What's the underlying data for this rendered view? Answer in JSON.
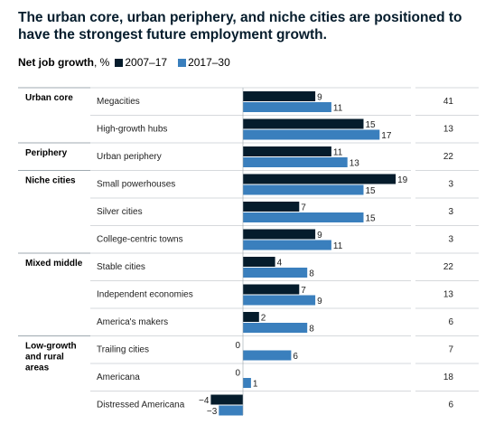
{
  "title": "The urban core, urban periphery, and niche cities are positioned to have the strongest future employment growth.",
  "legend": {
    "label": "Net job growth",
    "unit": ", %",
    "items": [
      {
        "label": "2007–17",
        "color": "#051c2c"
      },
      {
        "label": "2017–30",
        "color": "#3a7fbd"
      }
    ]
  },
  "chart_data": {
    "type": "bar",
    "orientation": "horizontal",
    "unit": "%",
    "groups": [
      {
        "label": "Urban core",
        "categories": [
          "Megacities",
          "High-growth hubs"
        ]
      },
      {
        "label": "Periphery",
        "categories": [
          "Urban periphery"
        ]
      },
      {
        "label": "Niche cities",
        "categories": [
          "Small powerhouses",
          "Silver cities",
          "College-centric towns"
        ]
      },
      {
        "label": "Mixed middle",
        "categories": [
          "Stable cities",
          "Independent economies",
          "America's makers"
        ]
      },
      {
        "label": "Low-growth and rural areas",
        "categories": [
          "Trailing cities",
          "Americana",
          "Distressed Americana"
        ]
      }
    ],
    "categories": [
      "Megacities",
      "High-growth hubs",
      "Urban periphery",
      "Small powerhouses",
      "Silver cities",
      "College-centric towns",
      "Stable cities",
      "Independent economies",
      "America's makers",
      "Trailing cities",
      "Americana",
      "Distressed Americana"
    ],
    "series": [
      {
        "name": "2007–17",
        "color": "#051c2c",
        "values": [
          9,
          15,
          11,
          19,
          7,
          9,
          4,
          7,
          2,
          0,
          0,
          -4
        ]
      },
      {
        "name": "2017–30",
        "color": "#3a7fbd",
        "values": [
          11,
          17,
          13,
          15,
          15,
          11,
          8,
          9,
          8,
          6,
          1,
          -3
        ]
      }
    ],
    "right_values": [
      41,
      13,
      22,
      3,
      3,
      3,
      22,
      13,
      6,
      7,
      18,
      6
    ],
    "xlim": [
      -4,
      19
    ],
    "grid": false,
    "legend_position": "top-left"
  }
}
